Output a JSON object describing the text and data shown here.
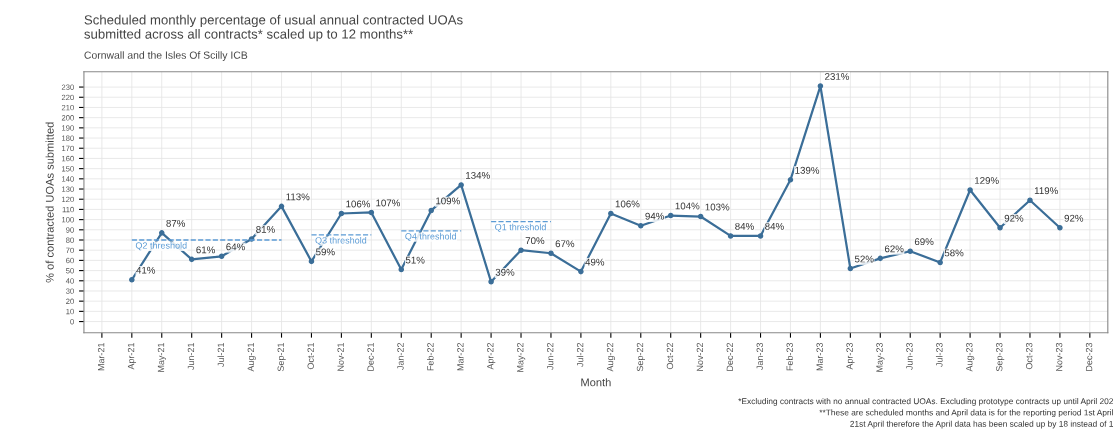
{
  "chart_data": {
    "type": "line",
    "title": "Scheduled monthly percentage of usual annual contracted UOAs\nsubmitted across all contracts* scaled up to 12 months**",
    "subtitle": "Cornwall and the Isles Of Scilly ICB",
    "xlabel": "Month",
    "ylabel": "% of contracted UOAs submitted",
    "categories": [
      "Mar-21",
      "Apr-21",
      "May-21",
      "Jun-21",
      "Jul-21",
      "Aug-21",
      "Sep-21",
      "Oct-21",
      "Nov-21",
      "Dec-21",
      "Jan-22",
      "Feb-22",
      "Mar-22",
      "Apr-22",
      "May-22",
      "Jun-22",
      "Jul-22",
      "Aug-22",
      "Sep-22",
      "Oct-22",
      "Nov-22",
      "Dec-22",
      "Jan-23",
      "Feb-23",
      "Mar-23",
      "Apr-23",
      "May-23",
      "Jun-23",
      "Jul-23",
      "Aug-23",
      "Sep-23",
      "Oct-23",
      "Nov-23",
      "Dec-23"
    ],
    "series": [
      {
        "color": "#3b6e98",
        "marker": "circle",
        "values": [
          null,
          41,
          87,
          61,
          64,
          81,
          113,
          59,
          106,
          107,
          51,
          109,
          134,
          39,
          70,
          67,
          49,
          106,
          94,
          104,
          103,
          84,
          84,
          139,
          231,
          52,
          62,
          69,
          58,
          129,
          92,
          119,
          92,
          null
        ],
        "value_labels": [
          null,
          "41%",
          "87%",
          "61%",
          "64%",
          "81%",
          "113%",
          "59%",
          "106%",
          "107%",
          "51%",
          "109%",
          "134%",
          "39%",
          "70%",
          "67%",
          "49%",
          "106%",
          "94%",
          "104%",
          "103%",
          "84%",
          "84%",
          "139%",
          "231%",
          "52%",
          "62%",
          "69%",
          "58%",
          "129%",
          "92%",
          "119%",
          "92%",
          null
        ]
      },
      {
        "name": "Q2 threshold",
        "color": "#5b9bd5",
        "line_style": "dashed",
        "values": [
          null,
          80,
          80,
          80,
          80,
          80,
          80,
          null,
          null,
          null,
          null,
          null,
          null,
          null,
          null,
          null,
          null,
          null,
          null,
          null,
          null,
          null,
          null,
          null,
          null,
          null,
          null,
          null,
          null,
          null,
          null,
          null,
          null,
          null
        ]
      },
      {
        "name": "Q3 threshold",
        "color": "#5b9bd5",
        "line_style": "dashed",
        "values": [
          null,
          null,
          null,
          null,
          null,
          null,
          null,
          85,
          85,
          85,
          null,
          null,
          null,
          null,
          null,
          null,
          null,
          null,
          null,
          null,
          null,
          null,
          null,
          null,
          null,
          null,
          null,
          null,
          null,
          null,
          null,
          null,
          null,
          null
        ]
      },
      {
        "name": "Q4 threshold",
        "color": "#5b9bd5",
        "line_style": "dashed",
        "values": [
          null,
          null,
          null,
          null,
          null,
          null,
          null,
          null,
          null,
          null,
          89,
          89,
          89,
          null,
          null,
          null,
          null,
          null,
          null,
          null,
          null,
          null,
          null,
          null,
          null,
          null,
          null,
          null,
          null,
          null,
          null,
          null,
          null,
          null
        ]
      },
      {
        "name": "Q1 threshold",
        "color": "#5b9bd5",
        "line_style": "dashed",
        "values": [
          null,
          null,
          null,
          null,
          null,
          null,
          null,
          null,
          null,
          null,
          null,
          null,
          null,
          98,
          98,
          98,
          null,
          null,
          null,
          null,
          null,
          null,
          null,
          null,
          null,
          null,
          null,
          null,
          null,
          null,
          null,
          null,
          null,
          null
        ]
      }
    ],
    "ylim": [
      -11,
      245
    ],
    "yticks": [
      0,
      10,
      20,
      30,
      40,
      50,
      60,
      70,
      80,
      90,
      100,
      110,
      120,
      130,
      140,
      150,
      160,
      170,
      180,
      190,
      200,
      210,
      220,
      230
    ],
    "grid": true,
    "annotations": [
      "*Excluding contracts with no annual contracted UOAs. Excluding prototype contracts up until April 202",
      "**These are scheduled months and April data is for the reporting period 1st April",
      "21st April therefore the April data has been scaled up by 18 instead of 1"
    ]
  }
}
